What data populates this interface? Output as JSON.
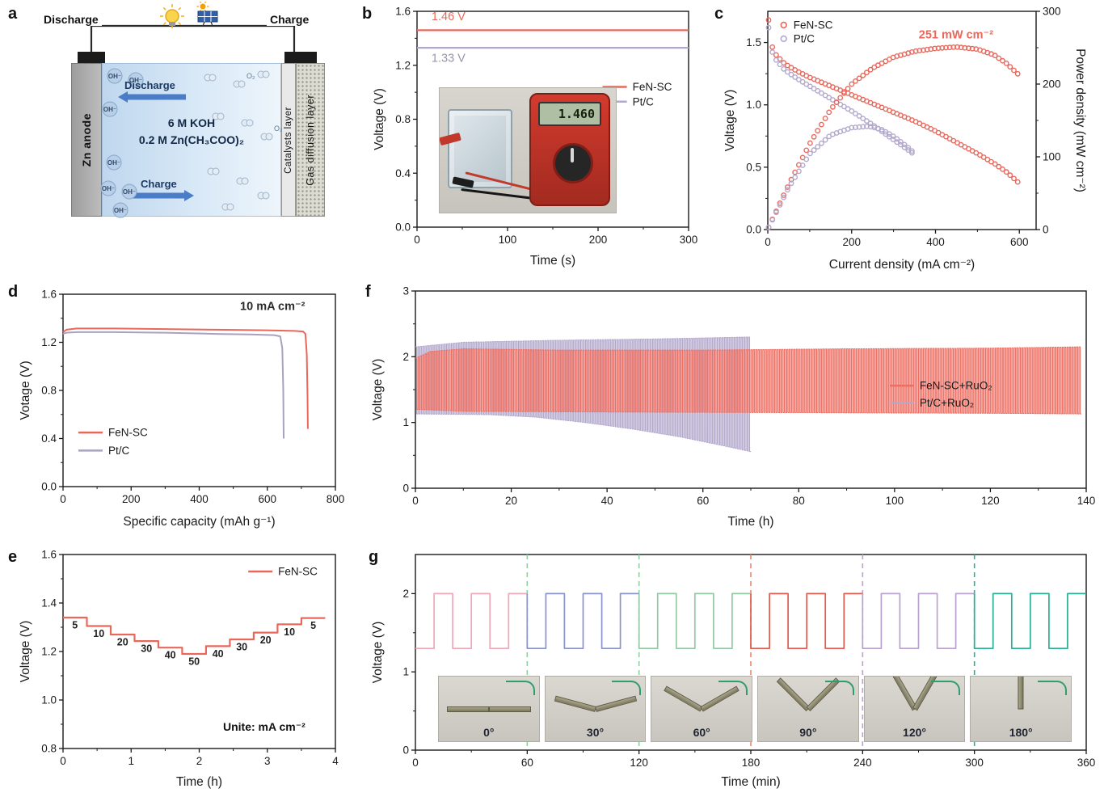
{
  "panels": {
    "a": {
      "label": "a"
    },
    "b": {
      "label": "b"
    },
    "c": {
      "label": "c"
    },
    "d": {
      "label": "d"
    },
    "e": {
      "label": "e"
    },
    "f": {
      "label": "f"
    },
    "g": {
      "label": "g"
    }
  },
  "colors": {
    "fen_sc": "#e8685c",
    "pt_c": "#b2a8cc",
    "axis": "#1a1a1a",
    "arrow_blue": "#4a7cc7"
  },
  "schematic": {
    "discharge_top": "Discharge",
    "charge_top": "Charge",
    "zn_anode": "Zn anode",
    "electrolyte_line1": "6 M KOH",
    "electrolyte_line2": "0.2 M Zn(CH₃COO)₂",
    "arrow_discharge": "Discharge",
    "arrow_charge": "Charge",
    "catalysts_layer": "Catalysts layer",
    "gas_diffusion_layer": "Gas diffusion layer",
    "oh_ion": "OH⁻",
    "o2_molecule": "O₂"
  },
  "multimeter": {
    "display": "1.460"
  },
  "chart_data": [
    {
      "id": "b",
      "type": "line",
      "xlabel": "Time (s)",
      "ylabel": "Voltage (V)",
      "xlim": [
        0,
        300
      ],
      "ylim": [
        0,
        1.6
      ],
      "xticks": [
        0,
        100,
        200,
        300
      ],
      "yticks": [
        0,
        0.4,
        0.8,
        1.2,
        1.6
      ],
      "series": [
        {
          "name": "FeN-SC",
          "color": "#e8685c",
          "points": [
            [
              0,
              1.46
            ],
            [
              300,
              1.46
            ]
          ]
        },
        {
          "name": "Pt/C",
          "color": "#b2a8cc",
          "points": [
            [
              0,
              1.33
            ],
            [
              300,
              1.33
            ]
          ]
        }
      ],
      "annotations": [
        {
          "text": "1.46 V",
          "color": "#e8685c",
          "x": 16,
          "y": 1.535
        },
        {
          "text": "1.33 V",
          "color": "#9a93ad",
          "x": 16,
          "y": 1.225
        }
      ],
      "legend": [
        {
          "name": "FeN-SC",
          "color": "#e8685c"
        },
        {
          "name": "Pt/C",
          "color": "#b2a8cc"
        }
      ]
    },
    {
      "id": "c",
      "type": "scatter",
      "xlabel": "Current density (mA cm⁻²)",
      "ylabel": "Voltage (V)",
      "y2label": "Power density (mW cm⁻²)",
      "xlim": [
        0,
        640
      ],
      "ylim": [
        0,
        1.75
      ],
      "y2lim": [
        0,
        300
      ],
      "xticks": [
        0,
        200,
        400,
        600
      ],
      "yticks": [
        0,
        0.5,
        1.0,
        1.5
      ],
      "y2ticks": [
        0,
        100,
        200,
        300
      ],
      "annotation": {
        "text": "251 mW cm⁻²",
        "color": "#e8685c",
        "x": 360,
        "y2": 263
      },
      "series": [
        {
          "name": "FeN-SC voltage",
          "axis": "y",
          "color": "#e8685c",
          "points": [
            [
              2,
              1.68
            ],
            [
              5,
              1.55
            ],
            [
              10,
              1.47
            ],
            [
              20,
              1.4
            ],
            [
              40,
              1.33
            ],
            [
              70,
              1.27
            ],
            [
              100,
              1.22
            ],
            [
              150,
              1.15
            ],
            [
              200,
              1.08
            ],
            [
              250,
              1.01
            ],
            [
              300,
              0.94
            ],
            [
              350,
              0.87
            ],
            [
              400,
              0.79
            ],
            [
              450,
              0.7
            ],
            [
              500,
              0.61
            ],
            [
              540,
              0.53
            ],
            [
              570,
              0.46
            ],
            [
              600,
              0.37
            ]
          ]
        },
        {
          "name": "Pt/C voltage",
          "axis": "y",
          "color": "#b2a8cc",
          "points": [
            [
              2,
              1.62
            ],
            [
              5,
              1.5
            ],
            [
              10,
              1.43
            ],
            [
              20,
              1.36
            ],
            [
              40,
              1.28
            ],
            [
              70,
              1.21
            ],
            [
              100,
              1.15
            ],
            [
              150,
              1.05
            ],
            [
              200,
              0.95
            ],
            [
              250,
              0.84
            ],
            [
              300,
              0.72
            ],
            [
              330,
              0.65
            ],
            [
              350,
              0.6
            ]
          ]
        },
        {
          "name": "FeN-SC power",
          "axis": "y2",
          "color": "#e8685c",
          "points": [
            [
              2,
              3
            ],
            [
              50,
              62
            ],
            [
              100,
              118
            ],
            [
              150,
              165
            ],
            [
              200,
              200
            ],
            [
              250,
              222
            ],
            [
              300,
              237
            ],
            [
              350,
              245
            ],
            [
              400,
              249
            ],
            [
              450,
              251
            ],
            [
              500,
              248
            ],
            [
              540,
              240
            ],
            [
              570,
              228
            ],
            [
              600,
              212
            ]
          ]
        },
        {
          "name": "Pt/C power",
          "axis": "y2",
          "color": "#b2a8cc",
          "points": [
            [
              2,
              3
            ],
            [
              50,
              58
            ],
            [
              100,
              104
            ],
            [
              150,
              130
            ],
            [
              200,
              140
            ],
            [
              240,
              142
            ],
            [
              270,
              138
            ],
            [
              300,
              128
            ],
            [
              330,
              115
            ],
            [
              350,
              105
            ]
          ]
        }
      ],
      "legend": [
        {
          "name": "FeN-SC",
          "color": "#e8685c"
        },
        {
          "name": "Pt/C",
          "color": "#b2a8cc"
        }
      ]
    },
    {
      "id": "d",
      "type": "line",
      "xlabel": "Specific capacity (mAh g⁻¹)",
      "ylabel": "Votage (V)",
      "xlim": [
        0,
        800
      ],
      "ylim": [
        0,
        1.6
      ],
      "xticks": [
        0,
        200,
        400,
        600,
        800
      ],
      "yticks": [
        0,
        0.4,
        0.8,
        1.2,
        1.6
      ],
      "annotation": {
        "text": "10 mA cm⁻²",
        "color": "#2b2b2b",
        "x": 520,
        "y": 1.47
      },
      "series": [
        {
          "name": "FeN-SC",
          "color": "#e8685c",
          "points": [
            [
              0,
              1.285
            ],
            [
              10,
              1.305
            ],
            [
              40,
              1.315
            ],
            [
              150,
              1.315
            ],
            [
              300,
              1.31
            ],
            [
              450,
              1.305
            ],
            [
              600,
              1.3
            ],
            [
              680,
              1.295
            ],
            [
              705,
              1.29
            ],
            [
              712,
              1.27
            ],
            [
              716,
              1.1
            ],
            [
              718,
              0.75
            ],
            [
              719,
              0.48
            ]
          ]
        },
        {
          "name": "Pt/C",
          "color": "#a9a2bf",
          "points": [
            [
              0,
              1.27
            ],
            [
              10,
              1.28
            ],
            [
              40,
              1.285
            ],
            [
              150,
              1.285
            ],
            [
              300,
              1.28
            ],
            [
              450,
              1.27
            ],
            [
              550,
              1.265
            ],
            [
              620,
              1.26
            ],
            [
              638,
              1.25
            ],
            [
              644,
              1.15
            ],
            [
              647,
              0.8
            ],
            [
              648,
              0.4
            ]
          ]
        }
      ],
      "legend": [
        {
          "name": "FeN-SC",
          "color": "#e8685c"
        },
        {
          "name": "Pt/C",
          "color": "#a9a2bf"
        }
      ]
    },
    {
      "id": "e",
      "type": "step",
      "xlabel": "Time (h)",
      "ylabel": "Voltage (V)",
      "xlim": [
        0,
        4
      ],
      "ylim": [
        0.8,
        1.6
      ],
      "xticks": [
        0,
        1,
        2,
        3,
        4
      ],
      "yticks": [
        0.8,
        1.0,
        1.2,
        1.4,
        1.6
      ],
      "legend": [
        {
          "name": "FeN-SC",
          "color": "#e8685c"
        }
      ],
      "annotation": {
        "text": "Unite: mA cm⁻²",
        "x": 2.35,
        "y": 0.873
      },
      "step_duration_h": 0.35,
      "steps": [
        {
          "label": "5",
          "voltage": 1.34
        },
        {
          "label": "10",
          "voltage": 1.305
        },
        {
          "label": "20",
          "voltage": 1.27
        },
        {
          "label": "30",
          "voltage": 1.243
        },
        {
          "label": "40",
          "voltage": 1.216
        },
        {
          "label": "50",
          "voltage": 1.19
        },
        {
          "label": "40",
          "voltage": 1.222
        },
        {
          "label": "30",
          "voltage": 1.25
        },
        {
          "label": "20",
          "voltage": 1.278
        },
        {
          "label": "10",
          "voltage": 1.312
        },
        {
          "label": "5",
          "voltage": 1.338
        }
      ]
    },
    {
      "id": "f",
      "type": "cycling",
      "xlabel": "Time (h)",
      "ylabel": "Voltage (V)",
      "xlim": [
        0,
        140
      ],
      "ylim": [
        0,
        3
      ],
      "xticks": [
        0,
        20,
        40,
        60,
        80,
        100,
        120,
        140
      ],
      "yticks": [
        0,
        1,
        2,
        3
      ],
      "cycle_period_h": 0.5,
      "series": [
        {
          "name": "FeN-SC+RuO₂",
          "color": "#ed6f63",
          "t_end": 139,
          "charge_envelope": [
            [
              0,
              1.98
            ],
            [
              3,
              2.08
            ],
            [
              10,
              2.12
            ],
            [
              30,
              2.1
            ],
            [
              60,
              2.1
            ],
            [
              90,
              2.12
            ],
            [
              120,
              2.13
            ],
            [
              139,
              2.15
            ]
          ],
          "discharge_envelope": [
            [
              0,
              1.2
            ],
            [
              10,
              1.17
            ],
            [
              40,
              1.16
            ],
            [
              80,
              1.15
            ],
            [
              120,
              1.14
            ],
            [
              139,
              1.13
            ]
          ]
        },
        {
          "name": "Pt/C+RuO₂",
          "color": "#b2a8cc",
          "t_end": 70,
          "charge_envelope": [
            [
              0,
              2.15
            ],
            [
              10,
              2.22
            ],
            [
              30,
              2.25
            ],
            [
              50,
              2.27
            ],
            [
              70,
              2.3
            ]
          ],
          "discharge_envelope": [
            [
              0,
              1.13
            ],
            [
              15,
              1.12
            ],
            [
              25,
              1.08
            ],
            [
              35,
              1.0
            ],
            [
              45,
              0.9
            ],
            [
              55,
              0.78
            ],
            [
              65,
              0.63
            ],
            [
              70,
              0.55
            ]
          ]
        }
      ],
      "legend": [
        {
          "name": "FeN-SC+RuO₂",
          "color": "#ed6f63"
        },
        {
          "name": "Pt/C+RuO₂",
          "color": "#b2a8cc"
        }
      ]
    },
    {
      "id": "g",
      "type": "square-wave",
      "xlabel": "Time (min)",
      "ylabel": "Voltage (V)",
      "xlim": [
        0,
        360
      ],
      "ylim": [
        0,
        2.5
      ],
      "xticks": [
        0,
        60,
        120,
        180,
        240,
        300,
        360
      ],
      "yticks": [
        0,
        1,
        2
      ],
      "wave": {
        "low_v": 1.3,
        "high_v": 2.0,
        "period_min": 20
      },
      "segments": [
        {
          "angle": "0°",
          "color": "#efa8b8"
        },
        {
          "angle": "30°",
          "color": "#8b93cd"
        },
        {
          "angle": "60°",
          "color": "#93c8a4"
        },
        {
          "angle": "90°",
          "color": "#e25a4d"
        },
        {
          "angle": "120°",
          "color": "#b9a2ce"
        },
        {
          "angle": "180°",
          "color": "#2aaf95"
        }
      ],
      "boundary_lines": [
        {
          "x": 60,
          "color": "#8fcf9f"
        },
        {
          "x": 120,
          "color": "#8fcf9f"
        },
        {
          "x": 180,
          "color": "#e98873"
        },
        {
          "x": 240,
          "color": "#bfa0d4"
        },
        {
          "x": 300,
          "color": "#2aaf95"
        }
      ]
    }
  ]
}
